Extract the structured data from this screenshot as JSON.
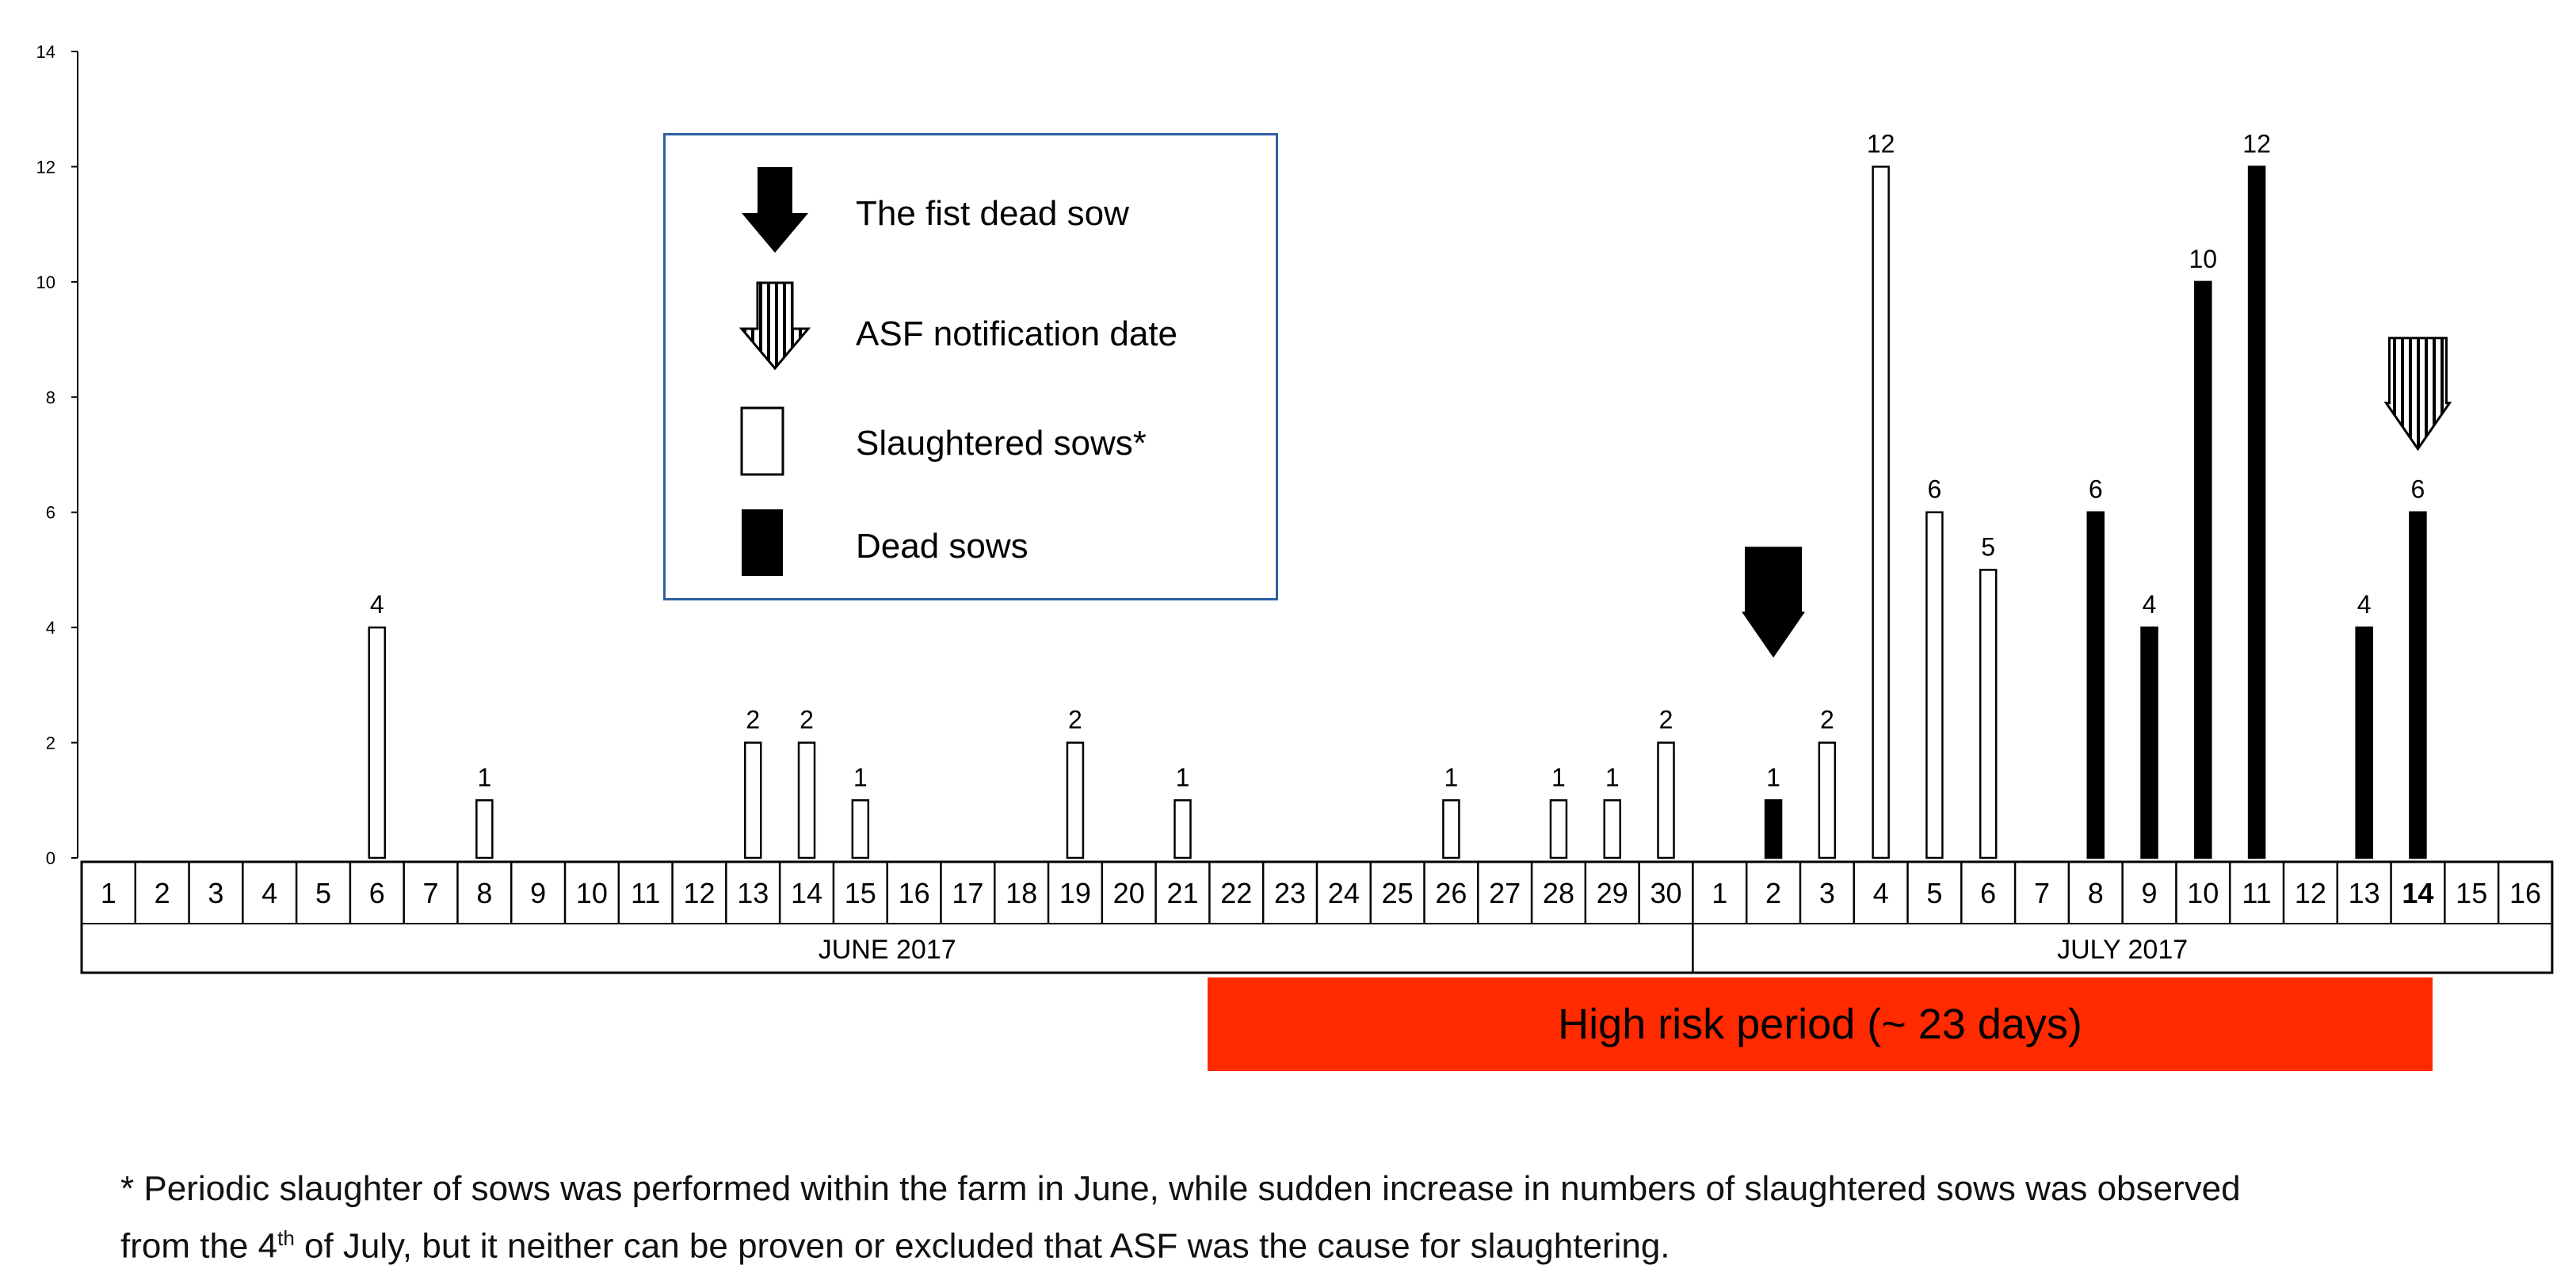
{
  "chart_data": {
    "type": "bar",
    "title": "",
    "xlabel": "",
    "ylabel": "",
    "ylim": [
      0,
      14
    ],
    "y_ticks": [
      "0",
      "2",
      "4",
      "6",
      "8",
      "10",
      "12",
      "14"
    ],
    "grid": false,
    "days": [
      {
        "label": "1",
        "month": "JUNE"
      },
      {
        "label": "2",
        "month": "JUNE"
      },
      {
        "label": "3",
        "month": "JUNE"
      },
      {
        "label": "4",
        "month": "JUNE"
      },
      {
        "label": "5",
        "month": "JUNE"
      },
      {
        "label": "6",
        "month": "JUNE"
      },
      {
        "label": "7",
        "month": "JUNE"
      },
      {
        "label": "8",
        "month": "JUNE"
      },
      {
        "label": "9",
        "month": "JUNE"
      },
      {
        "label": "10",
        "month": "JUNE"
      },
      {
        "label": "11",
        "month": "JUNE"
      },
      {
        "label": "12",
        "month": "JUNE"
      },
      {
        "label": "13",
        "month": "JUNE"
      },
      {
        "label": "14",
        "month": "JUNE"
      },
      {
        "label": "15",
        "month": "JUNE"
      },
      {
        "label": "16",
        "month": "JUNE"
      },
      {
        "label": "17",
        "month": "JUNE"
      },
      {
        "label": "18",
        "month": "JUNE"
      },
      {
        "label": "19",
        "month": "JUNE"
      },
      {
        "label": "20",
        "month": "JUNE"
      },
      {
        "label": "21",
        "month": "JUNE"
      },
      {
        "label": "22",
        "month": "JUNE"
      },
      {
        "label": "23",
        "month": "JUNE"
      },
      {
        "label": "24",
        "month": "JUNE"
      },
      {
        "label": "25",
        "month": "JUNE"
      },
      {
        "label": "26",
        "month": "JUNE"
      },
      {
        "label": "27",
        "month": "JUNE"
      },
      {
        "label": "28",
        "month": "JUNE"
      },
      {
        "label": "29",
        "month": "JUNE"
      },
      {
        "label": "30",
        "month": "JUNE"
      },
      {
        "label": "1",
        "month": "JULY"
      },
      {
        "label": "2",
        "month": "JULY"
      },
      {
        "label": "3",
        "month": "JULY"
      },
      {
        "label": "4",
        "month": "JULY"
      },
      {
        "label": "5",
        "month": "JULY"
      },
      {
        "label": "6",
        "month": "JULY"
      },
      {
        "label": "7",
        "month": "JULY"
      },
      {
        "label": "8",
        "month": "JULY"
      },
      {
        "label": "9",
        "month": "JULY"
      },
      {
        "label": "10",
        "month": "JULY"
      },
      {
        "label": "11",
        "month": "JULY"
      },
      {
        "label": "12",
        "month": "JULY"
      },
      {
        "label": "13",
        "month": "JULY"
      },
      {
        "label": "14",
        "month": "JULY",
        "bold": true
      },
      {
        "label": "15",
        "month": "JULY"
      },
      {
        "label": "16",
        "month": "JULY"
      }
    ],
    "months": [
      {
        "label": "JUNE  2017",
        "start_index": 0,
        "end_index": 29
      },
      {
        "label": "JULY  2017",
        "start_index": 30,
        "end_index": 45
      }
    ],
    "series": [
      {
        "name": "Slaughtered sows*",
        "style": "open",
        "color": "#ffffff",
        "points": [
          {
            "day_index": 5,
            "value": 4
          },
          {
            "day_index": 7,
            "value": 1
          },
          {
            "day_index": 12,
            "value": 2
          },
          {
            "day_index": 13,
            "value": 2
          },
          {
            "day_index": 14,
            "value": 1
          },
          {
            "day_index": 18,
            "value": 2
          },
          {
            "day_index": 20,
            "value": 1
          },
          {
            "day_index": 25,
            "value": 1
          },
          {
            "day_index": 27,
            "value": 1
          },
          {
            "day_index": 28,
            "value": 1
          },
          {
            "day_index": 29,
            "value": 2
          },
          {
            "day_index": 32,
            "value": 2
          },
          {
            "day_index": 33,
            "value": 12
          },
          {
            "day_index": 34,
            "value": 6
          },
          {
            "day_index": 35,
            "value": 5
          }
        ]
      },
      {
        "name": "Dead sows",
        "style": "solid",
        "color": "#000000",
        "points": [
          {
            "day_index": 31,
            "value": 1
          },
          {
            "day_index": 37,
            "value": 6
          },
          {
            "day_index": 38,
            "value": 4
          },
          {
            "day_index": 39,
            "value": 10
          },
          {
            "day_index": 40,
            "value": 12
          },
          {
            "day_index": 42,
            "value": 4
          },
          {
            "day_index": 43,
            "value": 6
          }
        ]
      }
    ],
    "annotations": [
      {
        "name": "The fist dead sow",
        "icon": "solid-down-arrow-icon",
        "day_index": 31
      },
      {
        "name": "ASF notification date",
        "icon": "striped-down-arrow-icon",
        "day_index": 43
      }
    ],
    "high_risk_period": {
      "label": "High risk period (~ 23 days)",
      "color": "#ff2a00"
    },
    "legend_placement": "top-center"
  },
  "legend": {
    "items": [
      {
        "label": "The fist dead sow",
        "icon": "solid-down-arrow-icon"
      },
      {
        "label": "ASF notification date",
        "icon": "striped-down-arrow-icon"
      },
      {
        "label": "Slaughtered sows*",
        "icon": "open-bar-icon"
      },
      {
        "label": "Dead sows",
        "icon": "solid-bar-icon"
      }
    ],
    "border_color": "#2e5fa3"
  },
  "footnote": {
    "line1": "* Periodic slaughter of sows was performed within the farm in June, while sudden increase in numbers of slaughtered sows was observed",
    "line2_before": "from the 4",
    "line2_sup": "th",
    "line2_after": " of July, but it neither can be proven or excluded that ASF was the cause for slaughtering."
  }
}
